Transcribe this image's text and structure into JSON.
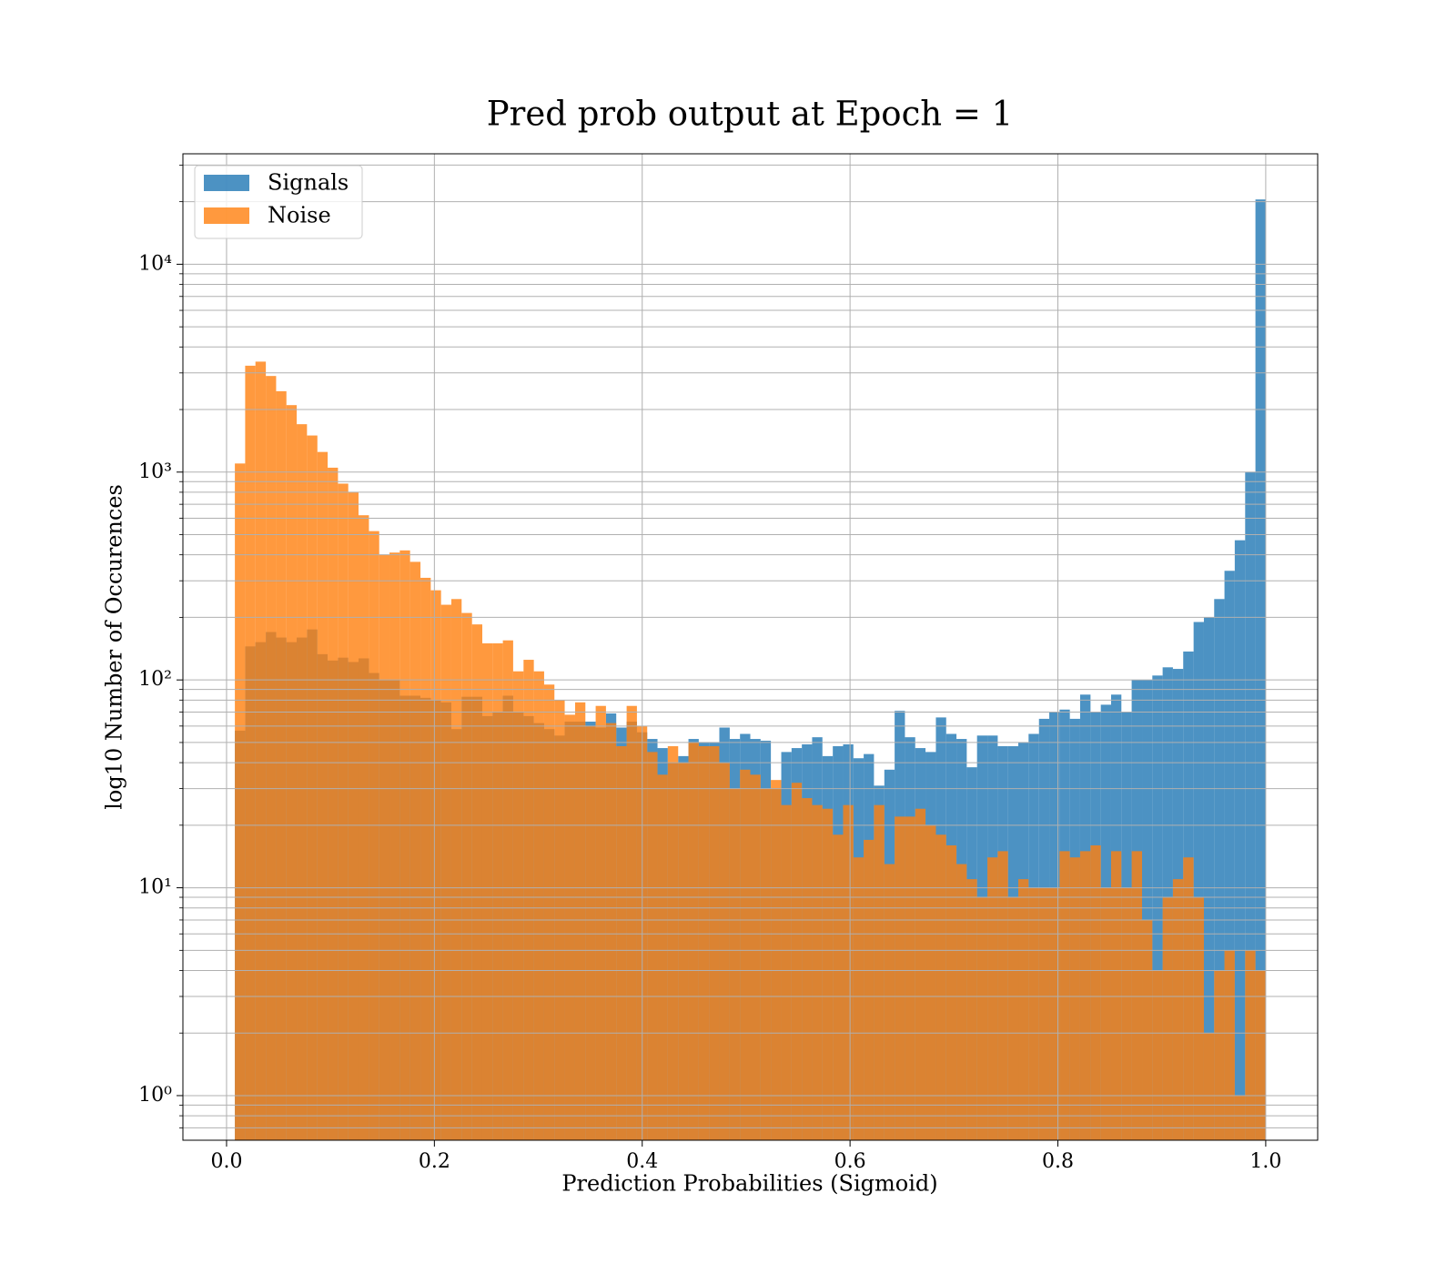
{
  "chart_data": {
    "type": "histogram",
    "title": "Pred prob output at Epoch = 1",
    "xlabel": "Prediction Probabilities (Sigmoid)",
    "ylabel": "log10 Number of Occurences",
    "bins": [
      0.008,
      0.0179,
      0.0278,
      0.0378,
      0.0477,
      0.0576,
      0.0675,
      0.0774,
      0.0874,
      0.0973,
      0.1072,
      0.1171,
      0.127,
      0.137,
      0.1469,
      0.1568,
      0.1667,
      0.1766,
      0.1866,
      0.1965,
      0.2064,
      0.2163,
      0.2262,
      0.2362,
      0.2461,
      0.256,
      0.2659,
      0.2758,
      0.2858,
      0.2957,
      0.3056,
      0.3155,
      0.3254,
      0.3354,
      0.3453,
      0.3552,
      0.3651,
      0.375,
      0.385,
      0.3949,
      0.4048,
      0.4147,
      0.4246,
      0.4346,
      0.4445,
      0.4544,
      0.4643,
      0.4742,
      0.4842,
      0.4941,
      0.504,
      0.5139,
      0.5238,
      0.5338,
      0.5437,
      0.5536,
      0.5635,
      0.5734,
      0.5834,
      0.5933,
      0.6032,
      0.6131,
      0.623,
      0.633,
      0.6429,
      0.6528,
      0.6627,
      0.6726,
      0.6826,
      0.6925,
      0.7024,
      0.7123,
      0.7222,
      0.7322,
      0.7421,
      0.752,
      0.7619,
      0.7718,
      0.7818,
      0.7917,
      0.8016,
      0.8115,
      0.8214,
      0.8314,
      0.8413,
      0.8512,
      0.8611,
      0.871,
      0.881,
      0.8909,
      0.9008,
      0.9107,
      0.9206,
      0.9306,
      0.9405,
      0.9504,
      0.9603,
      0.9702,
      0.9802,
      0.9901,
      1.0
    ],
    "series": [
      {
        "name": "Signals",
        "color": "#1f77b4",
        "alpha": 0.8,
        "values": [
          57,
          145,
          152,
          170,
          160,
          152,
          160,
          175,
          133,
          124,
          128,
          122,
          127,
          108,
          100,
          100,
          84,
          84,
          82,
          80,
          78,
          58,
          83,
          83,
          67,
          70,
          84,
          70,
          67,
          62,
          58,
          54,
          63,
          63,
          63,
          59,
          69,
          59,
          63,
          56,
          52,
          47,
          40,
          43,
          52,
          50,
          50,
          59,
          52,
          55,
          52,
          51,
          30,
          45,
          47,
          49,
          53,
          43,
          48,
          49,
          42,
          44,
          31,
          37,
          71,
          53,
          47,
          45,
          66,
          55,
          52,
          38,
          54,
          54,
          48,
          48,
          50,
          55,
          65,
          70,
          72,
          65,
          85,
          70,
          76,
          85,
          70,
          100,
          100,
          105,
          115,
          113,
          137,
          190,
          200,
          245,
          335,
          470,
          1000,
          20500
        ]
      },
      {
        "name": "Noise",
        "color": "#ff7f0e",
        "alpha": 0.8,
        "values": [
          1100,
          3250,
          3400,
          2900,
          2450,
          2100,
          1700,
          1500,
          1250,
          1050,
          880,
          800,
          620,
          520,
          400,
          410,
          420,
          370,
          310,
          270,
          230,
          245,
          210,
          185,
          150,
          150,
          155,
          110,
          125,
          110,
          95,
          80,
          68,
          78,
          60,
          75,
          62,
          48,
          75,
          60,
          45,
          35,
          48,
          40,
          50,
          48,
          48,
          40,
          30,
          37,
          35,
          30,
          33,
          25,
          32,
          27,
          25,
          24,
          18,
          25,
          14,
          17,
          25,
          13,
          22,
          22,
          24,
          20,
          18,
          16,
          13,
          11,
          9,
          14,
          15,
          9,
          11,
          10,
          10,
          10,
          15,
          14,
          15,
          16,
          10,
          15,
          10,
          15,
          7,
          4,
          9,
          11,
          14,
          9,
          2,
          4,
          5,
          1,
          5,
          4
        ]
      }
    ],
    "xlim": [
      -0.042,
      1.05
    ],
    "ylim": [
      0.61,
      34000
    ],
    "log_y": true,
    "grid": true,
    "legend": "upper left",
    "xticks": [
      {
        "value": 0,
        "label": "0.0"
      },
      0.2,
      0.4,
      0.6,
      0.8,
      {
        "value": 1,
        "label": "1.0"
      }
    ],
    "yticks": [
      {
        "value": 1,
        "label": "10⁰"
      },
      {
        "value": 10,
        "label": "10¹"
      },
      {
        "value": 100,
        "label": "10²"
      },
      {
        "value": 1000,
        "label": "10³"
      },
      {
        "value": 10000,
        "label": "10⁴"
      }
    ],
    "yticks_minor": [
      0.7,
      0.8,
      0.9,
      2,
      3,
      4,
      5,
      6,
      7,
      8,
      9,
      20,
      30,
      40,
      50,
      60,
      70,
      80,
      90,
      200,
      300,
      400,
      500,
      600,
      700,
      800,
      900,
      2000,
      3000,
      4000,
      5000,
      6000,
      7000,
      8000,
      9000,
      20000,
      30000
    ]
  }
}
